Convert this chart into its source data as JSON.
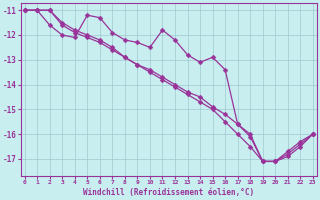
{
  "xlabel": "Windchill (Refroidissement éolien,°C)",
  "bg_color": "#c8eef0",
  "grid_color": "#a0c8d0",
  "line_color": "#993399",
  "x_ticks": [
    0,
    1,
    2,
    3,
    4,
    5,
    6,
    7,
    8,
    9,
    10,
    11,
    12,
    13,
    14,
    15,
    16,
    17,
    18,
    19,
    20,
    21,
    22,
    23
  ],
  "y_ticks": [
    -17,
    -16,
    -15,
    -14,
    -13,
    -12,
    -11
  ],
  "ylim": [
    -17.7,
    -10.7
  ],
  "xlim": [
    -0.3,
    23.3
  ],
  "line1": [
    -11.0,
    -11.0,
    -11.6,
    -12.0,
    -12.1,
    -11.2,
    -11.3,
    -11.9,
    -12.2,
    -12.3,
    -12.5,
    -11.8,
    -12.2,
    -12.8,
    -13.1,
    -12.9,
    -13.4,
    -15.6,
    -16.1,
    -17.1,
    -17.1,
    -16.7,
    -16.3,
    -16.0
  ],
  "line2": [
    -11.0,
    -11.0,
    -11.0,
    -11.6,
    -11.9,
    -12.1,
    -12.3,
    -12.6,
    -12.9,
    -13.2,
    -13.4,
    -13.7,
    -14.0,
    -14.3,
    -14.5,
    -14.9,
    -15.2,
    -15.6,
    -16.0,
    -17.1,
    -17.1,
    -16.8,
    -16.4,
    -16.0
  ],
  "line3": [
    -11.0,
    -11.0,
    -11.0,
    -11.5,
    -11.8,
    -12.0,
    -12.2,
    -12.5,
    -12.9,
    -13.2,
    -13.5,
    -13.8,
    -14.1,
    -14.4,
    -14.7,
    -15.0,
    -15.5,
    -16.0,
    -16.5,
    -17.1,
    -17.1,
    -16.9,
    -16.5,
    -16.0
  ]
}
